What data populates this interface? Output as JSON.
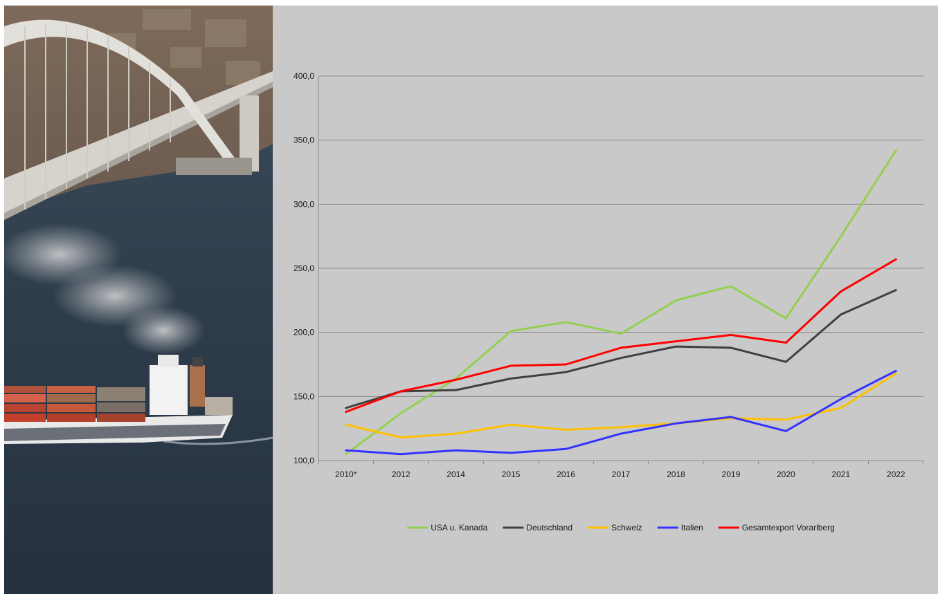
{
  "photo": {
    "description_icon": "bridge-and-container-ship-photo"
  },
  "chart_data": {
    "type": "line",
    "categories": [
      "2010*",
      "2012",
      "2014",
      "2015",
      "2016",
      "2017",
      "2018",
      "2019",
      "2020",
      "2021",
      "2022"
    ],
    "y_tick_labels": [
      "100,0",
      "150,0",
      "200,0",
      "250,0",
      "300,0",
      "350,0",
      "400,0"
    ],
    "ylim": [
      100,
      400
    ],
    "y_ticks": [
      100,
      150,
      200,
      250,
      300,
      350,
      400
    ],
    "grid": true,
    "legend_position": "bottom",
    "series": [
      {
        "name": "USA u. Kanada",
        "color": "#92d050",
        "values": [
          105,
          137,
          164,
          201,
          208,
          199,
          225,
          236,
          211,
          275,
          342
        ]
      },
      {
        "name": "Deutschland",
        "color": "#404040",
        "values": [
          141,
          154,
          155,
          164,
          169,
          180,
          189,
          188,
          177,
          214,
          233
        ]
      },
      {
        "name": "Schweiz",
        "color": "#ffc000",
        "values": [
          128,
          118,
          121,
          128,
          124,
          126,
          129,
          133,
          132,
          141,
          168
        ]
      },
      {
        "name": "Italien",
        "color": "#3333ff",
        "values": [
          108,
          105,
          108,
          106,
          109,
          121,
          129,
          134,
          123,
          148,
          170
        ]
      },
      {
        "name": "Gesamtexport Vorarlberg",
        "color": "#ff0000",
        "values": [
          138,
          154,
          163,
          174,
          175,
          188,
          193,
          198,
          192,
          232,
          257
        ]
      }
    ]
  }
}
